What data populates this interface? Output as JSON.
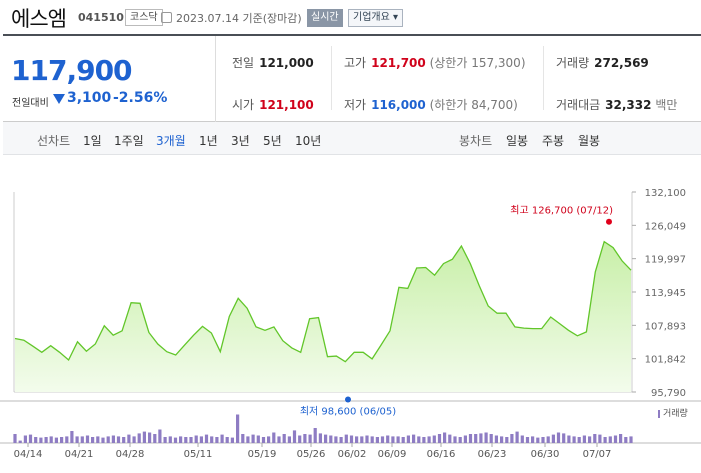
{
  "header": {
    "name": "에스엠",
    "code": "041510",
    "market": "코스닥",
    "date_info": "2023.07.14 기준(장마감)",
    "live_button": "실시간",
    "overview_button": "기업개요 ▾"
  },
  "quote": {
    "price": "117,900",
    "change_label": "전일대비",
    "change": "3,100",
    "change_pct": "-2.56%",
    "prev_close": {
      "label": "전일",
      "value": "121,000"
    },
    "high": {
      "label": "고가",
      "value": "121,700",
      "limit": "(상한가 157,300)"
    },
    "volume": {
      "label": "거래량",
      "value": "272,569"
    },
    "open": {
      "label": "시가",
      "value": "121,100"
    },
    "low": {
      "label": "저가",
      "value": "116,000",
      "limit": "(하한가 84,700)"
    },
    "amount": {
      "label": "거래대금",
      "value": "32,332",
      "unit": "백만"
    }
  },
  "toolbar": {
    "line_chart": "선차트",
    "periods": [
      "1일",
      "1주일",
      "3개월",
      "1년",
      "3년",
      "5년",
      "10년"
    ],
    "active_period": "3개월",
    "candle_chart": "봉차트",
    "candles": [
      "일봉",
      "주봉",
      "월봉"
    ]
  },
  "chart_data": {
    "type": "area",
    "y_ticks": [
      "132,100",
      "126,049",
      "119,997",
      "113,945",
      "107,893",
      "101,842",
      "95,790"
    ],
    "ylim": [
      95790,
      132100
    ],
    "x_ticks": [
      "04/14",
      "04/21",
      "04/28",
      "05/11",
      "05/19",
      "05/26",
      "06/02",
      "06/09",
      "06/16",
      "06/23",
      "06/30",
      "07/07"
    ],
    "high_label": "최고 126,700 (07/12)",
    "low_label": "최저 98,600 (06/05)",
    "high_value": 126700,
    "low_value": 98600,
    "volume_legend": "거래량",
    "prices": [
      105500,
      105200,
      104100,
      103000,
      104200,
      103000,
      101600,
      104900,
      103200,
      104500,
      107800,
      106100,
      106900,
      112000,
      111900,
      106600,
      104500,
      103100,
      102500,
      104300,
      106100,
      107700,
      106500,
      103100,
      109500,
      112800,
      111000,
      107600,
      107000,
      107600,
      105100,
      103800,
      103000,
      109100,
      109300,
      102200,
      102300,
      101300,
      103000,
      103000,
      101800,
      104300,
      106900,
      114800,
      114600,
      118300,
      118400,
      117000,
      119100,
      119900,
      122300,
      119100,
      115100,
      111400,
      110100,
      110100,
      107600,
      107400,
      107300,
      107300,
      109400,
      108200,
      107000,
      106000,
      106700,
      117600,
      123100,
      122000,
      119600,
      117900
    ],
    "volumes": [
      0.3,
      0.08,
      0.25,
      0.28,
      0.2,
      0.18,
      0.2,
      0.22,
      0.18,
      0.2,
      0.22,
      0.4,
      0.22,
      0.22,
      0.25,
      0.2,
      0.22,
      0.18,
      0.22,
      0.25,
      0.22,
      0.2,
      0.28,
      0.22,
      0.32,
      0.38,
      0.35,
      0.3,
      0.45,
      0.2,
      0.22,
      0.18,
      0.22,
      0.2,
      0.2,
      0.25,
      0.22,
      0.28,
      0.22,
      0.2,
      0.28,
      0.2,
      0.18,
      0.95,
      0.3,
      0.22,
      0.28,
      0.25,
      0.2,
      0.22,
      0.35,
      0.22,
      0.3,
      0.22,
      0.42,
      0.25,
      0.3,
      0.28,
      0.5,
      0.32,
      0.28,
      0.25,
      0.22,
      0.2,
      0.28,
      0.25,
      0.22,
      0.22,
      0.25,
      0.22,
      0.2,
      0.22,
      0.25,
      0.22,
      0.22,
      0.2,
      0.25,
      0.28,
      0.22,
      0.2,
      0.22,
      0.25,
      0.3,
      0.35,
      0.28,
      0.22,
      0.2,
      0.25,
      0.3,
      0.3,
      0.32,
      0.35,
      0.3,
      0.25,
      0.22,
      0.2,
      0.3,
      0.38,
      0.25,
      0.2,
      0.22,
      0.18,
      0.2,
      0.22,
      0.28,
      0.35,
      0.32,
      0.25,
      0.22,
      0.2,
      0.25,
      0.22,
      0.3,
      0.28,
      0.2,
      0.22,
      0.25,
      0.3,
      0.2,
      0.22
    ]
  }
}
